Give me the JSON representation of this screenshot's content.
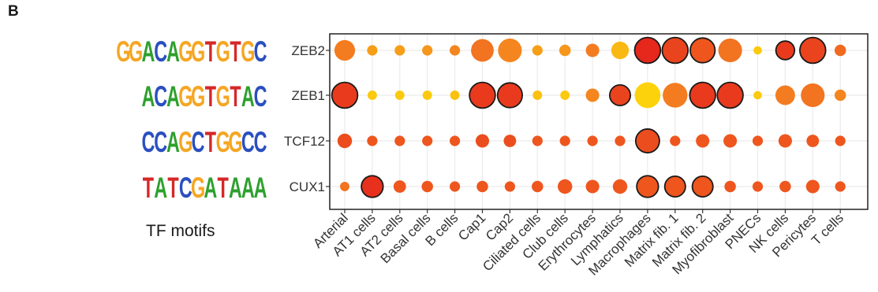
{
  "panel_label": "B",
  "motif_caption": "TF motifs",
  "colors": {
    "A": "#2ea02e",
    "C": "#2a4fbf",
    "G": "#f5a623",
    "T": "#d62728",
    "grid": "#ebebeb",
    "panel_border": "#222222"
  },
  "motifs": [
    {
      "tf": "ZEB2",
      "sequence": "GGACAGGTGTGC",
      "icon": "sequence-logo"
    },
    {
      "tf": "ZEB1",
      "sequence": "ACAGGTGTAC",
      "icon": "sequence-logo"
    },
    {
      "tf": "TCF12",
      "sequence": "CCAGCTGGCC",
      "icon": "sequence-logo"
    },
    {
      "tf": "CUX1",
      "sequence": "TATCGATAAA",
      "icon": "sequence-logo"
    }
  ],
  "chart_data": {
    "type": "scatter",
    "subtype": "dot-plot",
    "grid": true,
    "legend": "none",
    "rows": [
      "ZEB2",
      "ZEB1",
      "TCF12",
      "CUX1"
    ],
    "columns": [
      "Arterial",
      "AT1 cells",
      "AT2 cells",
      "Basal cells",
      "B cells",
      "Cap1",
      "Cap2",
      "Ciliated cells",
      "Club cells",
      "Erythrocytes",
      "Lymphatics",
      "Macrophages",
      "Matrix fib. 1",
      "Matrix fib. 2",
      "Myofibroblast",
      "PNECs",
      "NK cells",
      "Pericytes",
      "T cells"
    ],
    "size": [
      [
        0.7,
        0.2,
        0.2,
        0.2,
        0.2,
        0.8,
        0.85,
        0.2,
        0.25,
        0.35,
        0.55,
        0.95,
        0.95,
        0.9,
        0.85,
        0.1,
        0.6,
        0.95,
        0.25
      ],
      [
        0.95,
        0.15,
        0.15,
        0.15,
        0.15,
        0.95,
        0.9,
        0.15,
        0.15,
        0.35,
        0.7,
        0.95,
        0.9,
        0.95,
        0.95,
        0.1,
        0.65,
        0.85,
        0.25
      ],
      [
        0.4,
        0.2,
        0.2,
        0.2,
        0.2,
        0.35,
        0.3,
        0.2,
        0.2,
        0.2,
        0.2,
        0.85,
        0.2,
        0.35,
        0.35,
        0.2,
        0.35,
        0.3,
        0.2
      ],
      [
        0.15,
        0.75,
        0.3,
        0.25,
        0.2,
        0.25,
        0.2,
        0.25,
        0.4,
        0.35,
        0.4,
        0.75,
        0.7,
        0.7,
        0.25,
        0.2,
        0.25,
        0.35,
        0.2
      ]
    ],
    "color": [
      [
        0.5,
        0.3,
        0.3,
        0.35,
        0.45,
        0.55,
        0.45,
        0.3,
        0.35,
        0.5,
        0.15,
        0.95,
        0.8,
        0.7,
        0.55,
        0.05,
        0.85,
        0.8,
        0.6
      ],
      [
        0.85,
        0.05,
        0.05,
        0.05,
        0.1,
        0.85,
        0.85,
        0.1,
        0.05,
        0.45,
        0.8,
        0.0,
        0.5,
        0.85,
        0.85,
        0.05,
        0.5,
        0.55,
        0.45
      ],
      [
        0.75,
        0.7,
        0.7,
        0.7,
        0.7,
        0.75,
        0.75,
        0.7,
        0.7,
        0.7,
        0.7,
        0.75,
        0.7,
        0.7,
        0.7,
        0.7,
        0.7,
        0.7,
        0.7
      ],
      [
        0.55,
        0.9,
        0.7,
        0.7,
        0.7,
        0.7,
        0.7,
        0.7,
        0.7,
        0.7,
        0.7,
        0.7,
        0.7,
        0.7,
        0.7,
        0.7,
        0.7,
        0.7,
        0.7
      ]
    ],
    "outlined": [
      [
        false,
        false,
        false,
        false,
        false,
        false,
        false,
        false,
        false,
        false,
        false,
        true,
        true,
        true,
        false,
        false,
        true,
        true,
        false
      ],
      [
        true,
        false,
        false,
        false,
        false,
        true,
        true,
        false,
        false,
        false,
        true,
        false,
        false,
        true,
        true,
        false,
        false,
        false,
        false
      ],
      [
        false,
        false,
        false,
        false,
        false,
        false,
        false,
        false,
        false,
        false,
        false,
        true,
        false,
        false,
        false,
        false,
        false,
        false,
        false
      ],
      [
        false,
        true,
        false,
        false,
        false,
        false,
        false,
        false,
        false,
        false,
        false,
        true,
        true,
        true,
        false,
        false,
        false,
        false,
        false
      ]
    ]
  }
}
